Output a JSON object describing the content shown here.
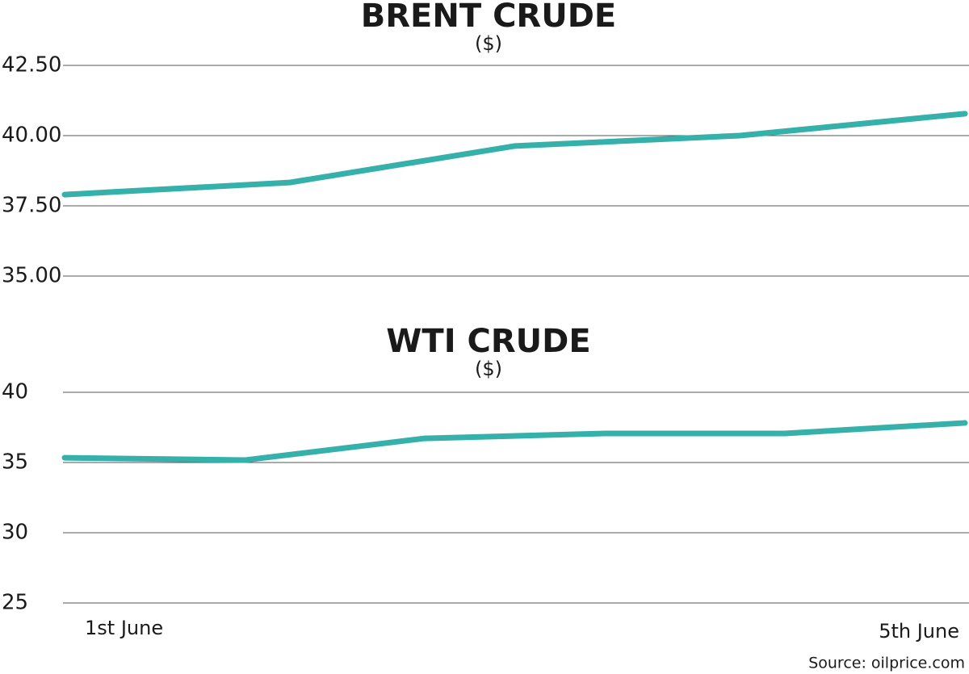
{
  "chart_data": [
    {
      "type": "line",
      "title": "BRENT CRUDE",
      "subtitle": "($)",
      "categories": [
        "1st June",
        null,
        null,
        null,
        "5th June"
      ],
      "values": [
        37.9,
        38.33,
        39.63,
        40.0,
        40.78
      ],
      "color": "#36b0ab",
      "ylim": [
        35,
        42.5
      ],
      "yticks": [
        {
          "value": 35,
          "label": "35.00"
        },
        {
          "value": 37.5,
          "label": "37.50"
        },
        {
          "value": 40,
          "label": "40.00"
        },
        {
          "value": 42.5,
          "label": "42.50"
        }
      ],
      "grid": true
    },
    {
      "type": "line",
      "title": "WTI CRUDE",
      "subtitle": "($)",
      "categories": [
        "1st June",
        null,
        null,
        null,
        null,
        "5th June"
      ],
      "values": [
        35.34,
        35.17,
        36.72,
        37.07,
        37.07,
        37.82
      ],
      "color": "#36b0ab",
      "ylim": [
        25,
        40
      ],
      "yticks": [
        25,
        30,
        35,
        40
      ],
      "grid": true
    }
  ],
  "source": "Source: oilprice.com"
}
